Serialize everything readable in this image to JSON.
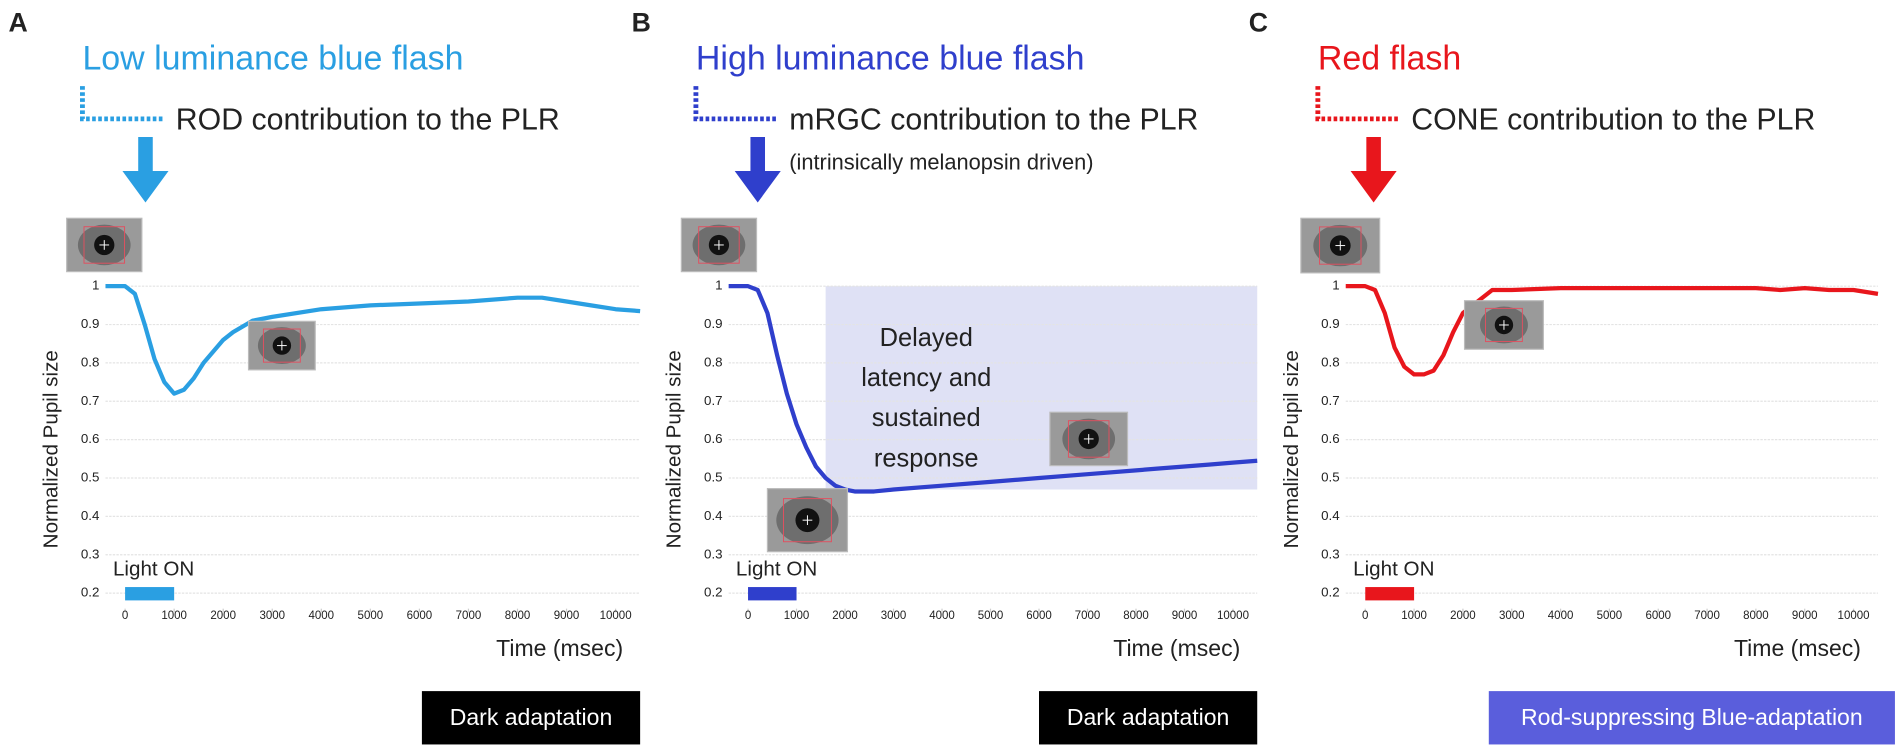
{
  "chart_data": [
    {
      "type": "line",
      "panel": "A",
      "title": "Low luminance blue flash",
      "title_color": "#2a9fe2",
      "annotation": "ROD contribution to the PLR",
      "ylabel": "Normalized Pupil size",
      "xlabel": "Time (msec)",
      "footer": "Dark adaptation",
      "footer_color": "#000000",
      "light_on": {
        "label": "Light ON",
        "range": [
          0,
          1000
        ]
      },
      "xlim": [
        -400,
        10500
      ],
      "ylim": [
        0.15,
        1.0
      ],
      "xticks": [
        0,
        1000,
        2000,
        3000,
        4000,
        5000,
        6000,
        7000,
        8000,
        9000,
        10000
      ],
      "yticks": [
        0.2,
        0.3,
        0.4,
        0.5,
        0.6,
        0.7,
        0.8,
        0.9,
        1
      ],
      "x": [
        -400,
        0,
        200,
        400,
        600,
        800,
        1000,
        1200,
        1400,
        1600,
        1800,
        2000,
        2200,
        2600,
        3000,
        4000,
        5000,
        6000,
        7000,
        8000,
        8500,
        9000,
        9500,
        10000,
        10500
      ],
      "series": [
        {
          "color": "#2a9fe2",
          "values": [
            1.0,
            1.0,
            0.98,
            0.9,
            0.81,
            0.75,
            0.72,
            0.73,
            0.76,
            0.8,
            0.83,
            0.86,
            0.88,
            0.91,
            0.92,
            0.94,
            0.95,
            0.955,
            0.96,
            0.97,
            0.97,
            0.96,
            0.95,
            0.94,
            0.935
          ]
        }
      ],
      "grid": true
    },
    {
      "type": "line",
      "panel": "B",
      "title": "High luminance blue flash",
      "title_color": "#2f3fcc",
      "annotation": "mRGC contribution to the PLR",
      "subtitle": "(intrinsically  melanopsin  driven)",
      "ylabel": "Normalized Pupil size",
      "xlabel": "Time (msec)",
      "footer": "Dark adaptation",
      "footer_color": "#000000",
      "light_on": {
        "label": "Light ON",
        "range": [
          0,
          1000
        ]
      },
      "shade": {
        "label": [
          "Delayed",
          "latency and",
          "sustained",
          "response"
        ],
        "xrange": [
          1600,
          10500
        ],
        "yrange": [
          0.47,
          1
        ]
      },
      "xlim": [
        -400,
        10500
      ],
      "ylim": [
        0.15,
        1.0
      ],
      "xticks": [
        0,
        1000,
        2000,
        3000,
        4000,
        5000,
        6000,
        7000,
        8000,
        9000,
        10000
      ],
      "yticks": [
        0.2,
        0.3,
        0.4,
        0.5,
        0.6,
        0.7,
        0.8,
        0.9,
        1
      ],
      "x": [
        -400,
        0,
        200,
        400,
        600,
        800,
        1000,
        1200,
        1400,
        1600,
        1800,
        2000,
        2200,
        2600,
        3000,
        4000,
        5000,
        6000,
        7000,
        8000,
        8500,
        9000,
        9500,
        10000,
        10500
      ],
      "series": [
        {
          "color": "#2f3fcc",
          "values": [
            1.0,
            1.0,
            0.99,
            0.93,
            0.82,
            0.72,
            0.64,
            0.58,
            0.53,
            0.5,
            0.48,
            0.47,
            0.465,
            0.465,
            0.47,
            0.48,
            0.49,
            0.5,
            0.51,
            0.52,
            0.525,
            0.53,
            0.535,
            0.54,
            0.545
          ]
        }
      ],
      "grid": true
    },
    {
      "type": "line",
      "panel": "C",
      "title": "Red flash",
      "title_color": "#e8161c",
      "annotation": "CONE contribution to the PLR",
      "ylabel": "Normalized Pupil size",
      "xlabel": "Time (msec)",
      "footer": "Rod-suppressing  Blue-adaptation",
      "footer_color": "#5a5edc",
      "light_on": {
        "label": "Light ON",
        "range": [
          0,
          1000
        ]
      },
      "xlim": [
        -400,
        10500
      ],
      "ylim": [
        0.15,
        1.0
      ],
      "xticks": [
        0,
        1000,
        2000,
        3000,
        4000,
        5000,
        6000,
        7000,
        8000,
        9000,
        10000
      ],
      "yticks": [
        0.2,
        0.3,
        0.4,
        0.5,
        0.6,
        0.7,
        0.8,
        0.9,
        1
      ],
      "x": [
        -400,
        0,
        200,
        400,
        600,
        800,
        1000,
        1200,
        1400,
        1600,
        1800,
        2000,
        2200,
        2600,
        3000,
        4000,
        5000,
        6000,
        7000,
        8000,
        8500,
        9000,
        9500,
        10000,
        10500
      ],
      "series": [
        {
          "color": "#e8161c",
          "values": [
            1.0,
            1.0,
            0.99,
            0.93,
            0.84,
            0.79,
            0.77,
            0.77,
            0.78,
            0.82,
            0.88,
            0.93,
            0.95,
            0.99,
            0.99,
            0.995,
            0.995,
            0.995,
            0.995,
            0.995,
            0.99,
            0.995,
            0.99,
            0.99,
            0.98
          ]
        }
      ],
      "grid": true
    }
  ]
}
